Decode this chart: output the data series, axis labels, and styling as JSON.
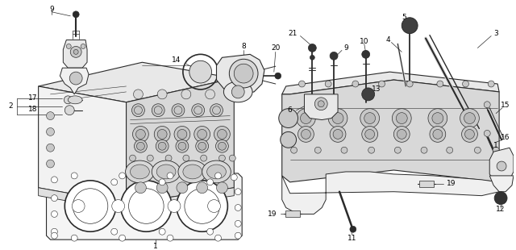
{
  "bg_color": "#ffffff",
  "line_color": "#2a2a2a",
  "text_color": "#000000",
  "fig_width": 6.4,
  "fig_height": 3.1,
  "dpi": 100,
  "font_size": 6.5,
  "lw": 0.7
}
